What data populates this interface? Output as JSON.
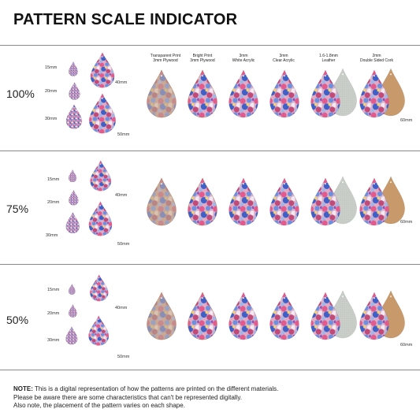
{
  "title": "PATTERN SCALE INDICATOR",
  "materials": [
    {
      "line1": "Transparent Print",
      "line2": "3mm Plywood"
    },
    {
      "line1": "Bright Print",
      "line2": "3mm Plywood"
    },
    {
      "line1": "3mm",
      "line2": "White Acrylic"
    },
    {
      "line1": "3mm",
      "line2": "Clear Acrylic"
    },
    {
      "line1": "1.6-1.8mm",
      "line2": "Leather"
    },
    {
      "line1": "2mm",
      "line2": "Double Sided Cork"
    }
  ],
  "rows": [
    {
      "scale": "100%",
      "s15": "15mm",
      "s20": "20mm",
      "s30": "30mm",
      "s40": "40mm",
      "s50": "50mm",
      "s60": "60mm"
    },
    {
      "scale": "75%",
      "s15": "15mm",
      "s20": "20mm",
      "s30": "30mm",
      "s40": "40mm",
      "s50": "50mm",
      "s60": "60mm"
    },
    {
      "scale": "50%",
      "s15": "15mm",
      "s20": "20mm",
      "s30": "30mm",
      "s40": "40mm",
      "s50": "50mm",
      "s60": "60mm"
    }
  ],
  "note": {
    "label": "NOTE:",
    "line1": " This is a digital representation of how the patterns are printed on the different materials.",
    "line2": "Please be aware there are some characteristics that can't be represented digitally.",
    "line3": "Also note, the placement of the pattern varies on each shape."
  },
  "colors": {
    "rule": "#8a8a8a",
    "plywood": "#b8875a",
    "leather": "#c9cdc8",
    "cork": "#c89a6b"
  }
}
